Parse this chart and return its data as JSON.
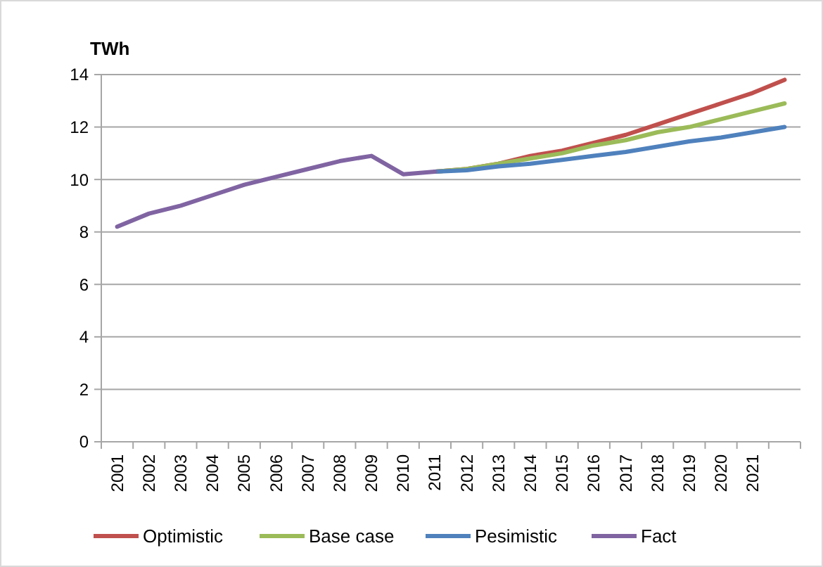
{
  "chart_data": {
    "type": "line",
    "ylabel": "TWh",
    "categories": [
      "2001",
      "2002",
      "2003",
      "2004",
      "2005",
      "2006",
      "2007",
      "2008",
      "2009",
      "2010",
      "2011",
      "2012",
      "2013",
      "2014",
      "2015",
      "2016",
      "2017",
      "2018",
      "2019",
      "2020",
      "2021",
      null
    ],
    "series": [
      {
        "name": "Optimistic",
        "color": "#c0504d",
        "values": [
          null,
          null,
          null,
          null,
          null,
          null,
          null,
          null,
          null,
          null,
          10.3,
          10.4,
          10.6,
          10.9,
          11.1,
          11.4,
          11.7,
          12.1,
          12.5,
          12.9,
          13.3,
          13.8
        ]
      },
      {
        "name": "Base case",
        "color": "#9bbb59",
        "values": [
          null,
          null,
          null,
          null,
          null,
          null,
          null,
          null,
          null,
          null,
          10.3,
          10.4,
          10.6,
          10.8,
          11.0,
          11.3,
          11.5,
          11.8,
          12.0,
          12.3,
          12.6,
          12.9
        ]
      },
      {
        "name": "Pesimistic",
        "color": "#4f81bd",
        "values": [
          null,
          null,
          null,
          null,
          null,
          null,
          null,
          null,
          null,
          null,
          10.3,
          10.35,
          10.5,
          10.6,
          10.75,
          10.9,
          11.05,
          11.25,
          11.45,
          11.6,
          11.8,
          12.0
        ]
      },
      {
        "name": "Fact",
        "color": "#8064a2",
        "values": [
          8.2,
          8.7,
          9.0,
          9.4,
          9.8,
          10.1,
          10.4,
          10.7,
          10.9,
          10.2,
          10.3,
          null,
          null,
          null,
          null,
          null,
          null,
          null,
          null,
          null,
          null,
          null
        ]
      }
    ],
    "ylim": [
      0,
      14
    ],
    "yticks": [
      0,
      2,
      4,
      6,
      8,
      10,
      12,
      14
    ],
    "grid": "y",
    "legend": "bottom",
    "line_style": "solid",
    "marker": "none"
  }
}
